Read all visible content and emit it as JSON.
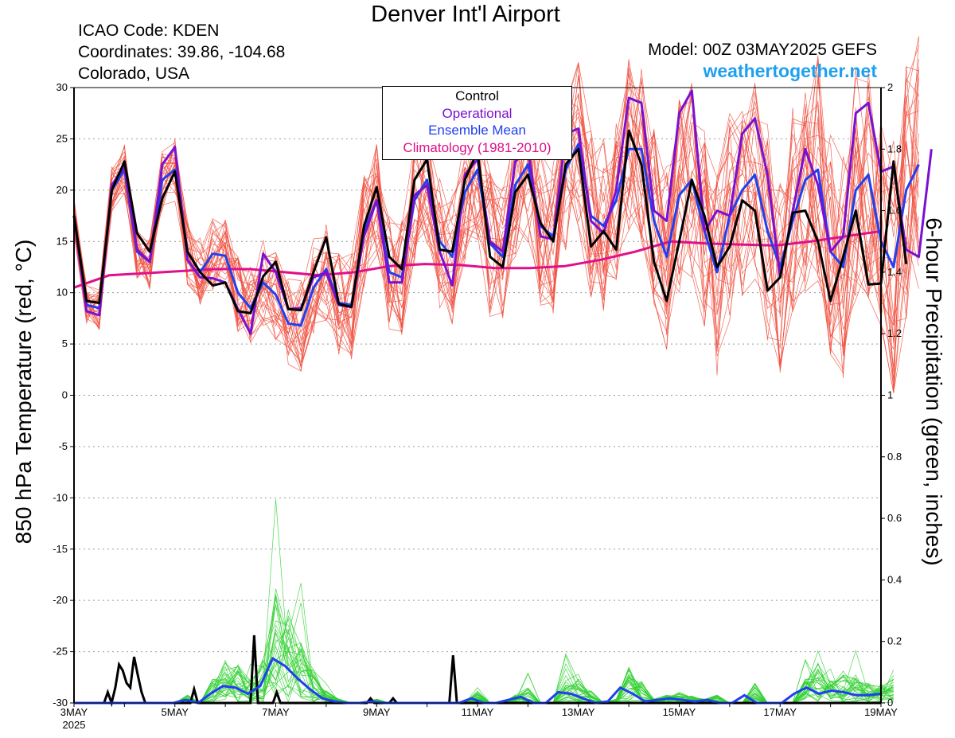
{
  "header": {
    "title": "Denver Int'l Airport",
    "icao": "ICAO Code: KDEN",
    "coordinates": "Coordinates: 39.86, -104.68",
    "location": "Colorado, USA",
    "model": "Model: 00Z 03MAY2025 GEFS",
    "site": "weathertogether.net"
  },
  "colors": {
    "members_temp": "#f05040",
    "members_precip": "#30d030",
    "control": "#000000",
    "operational": "#7a10d0",
    "ensemble_mean": "#2040f0",
    "climatology": "#e0108a",
    "site_link": "#1ea0f0"
  },
  "chart_data": {
    "type": "line",
    "ylabel": "850 hPa Temperature (red, °C)",
    "ylabel_right": "6-hour Precipitation (green, inches)",
    "ylim": [
      -30,
      30
    ],
    "ylim_right": [
      0,
      2
    ],
    "y_ticks": [
      "30",
      "25",
      "20",
      "15",
      "10",
      "5",
      "0",
      "-5",
      "-10",
      "-15",
      "-20",
      "-25",
      "-30"
    ],
    "y_ticks_right": [
      "2",
      "1.8",
      "1.6",
      "1.4",
      "1.2",
      "1",
      "0.8",
      "0.6",
      "0.4",
      "0.2",
      "0"
    ],
    "x_range_days": [
      0,
      16
    ],
    "x_step_hours": 6,
    "x_ticks": [
      {
        "day": 0,
        "label": "3MAY",
        "sub": "2025"
      },
      {
        "day": 2,
        "label": "5MAY"
      },
      {
        "day": 4,
        "label": "7MAY"
      },
      {
        "day": 6,
        "label": "9MAY"
      },
      {
        "day": 8,
        "label": "11MAY"
      },
      {
        "day": 10,
        "label": "13MAY"
      },
      {
        "day": 12,
        "label": "15MAY"
      },
      {
        "day": 14,
        "label": "17MAY"
      },
      {
        "day": 16,
        "label": "19MAY"
      }
    ],
    "legend": [
      "Control",
      "Operational",
      "Ensemble Mean",
      "Climatology (1981-2010)"
    ],
    "legend_position": "top-center",
    "grid": "dotted horizontal",
    "temperature_series": [
      {
        "name": "Control",
        "values": [
          17.5,
          9.2,
          9.0,
          20.0,
          22.8,
          15.8,
          14.0,
          19.2,
          21.8,
          14.0,
          12.0,
          10.7,
          11.0,
          8.2,
          8.0,
          11.6,
          13.0,
          8.4,
          8.3,
          12.0,
          15.4,
          8.9,
          8.6,
          16.5,
          20.3,
          13.5,
          12.3,
          21.0,
          23.0,
          14.2,
          14.0,
          21.0,
          23.8,
          13.5,
          12.5,
          19.8,
          21.5,
          16.8,
          15.0,
          22.5,
          24.0,
          14.5,
          16.0,
          14.2,
          25.8,
          22.5,
          13.0,
          9.2,
          15.0,
          21.0,
          17.5,
          12.5,
          14.5,
          19.0,
          18.0,
          10.2,
          11.5,
          17.8,
          18.0,
          15.0,
          9.2,
          13.5,
          18.0,
          10.8,
          10.9,
          22.8,
          12.8
        ]
      },
      {
        "name": "Operational",
        "values": [
          17.5,
          8.2,
          7.8,
          20.5,
          22.3,
          14.2,
          13.0,
          22.5,
          24.2,
          13.2,
          11.5,
          11.4,
          11.0,
          8.4,
          6.0,
          13.8,
          12.0,
          8.4,
          8.5,
          11.5,
          12.0,
          8.8,
          8.6,
          15.5,
          19.0,
          11.0,
          11.0,
          19.5,
          20.5,
          14.0,
          10.7,
          21.5,
          23.0,
          15.0,
          14.0,
          22.8,
          24.0,
          15.5,
          15.2,
          25.5,
          26.0,
          17.0,
          15.8,
          20.0,
          29.0,
          28.5,
          18.0,
          17.0,
          27.5,
          29.7,
          16.0,
          18.0,
          17.5,
          25.5,
          27.0,
          21.5,
          11.5,
          18.0,
          24.0,
          20.5,
          14.0,
          15.5,
          27.5,
          28.5,
          21.8,
          22.3,
          14.2,
          13.5,
          24.0
        ]
      },
      {
        "name": "Ensemble Mean",
        "values": [
          17.5,
          8.8,
          8.5,
          20.0,
          22.0,
          14.0,
          13.0,
          21.0,
          22.0,
          14.0,
          12.0,
          13.8,
          13.6,
          10.0,
          8.5,
          11.0,
          9.8,
          7.0,
          6.8,
          10.5,
          12.3,
          9.0,
          8.8,
          16.0,
          19.0,
          12.0,
          11.5,
          19.0,
          21.0,
          15.0,
          13.5,
          19.8,
          22.0,
          14.8,
          13.5,
          20.5,
          22.5,
          16.5,
          15.5,
          22.0,
          24.5,
          17.5,
          16.5,
          19.0,
          24.0,
          24.0,
          17.0,
          13.5,
          19.5,
          21.0,
          16.0,
          12.0,
          17.5,
          20.0,
          21.5,
          16.0,
          12.5,
          17.0,
          21.0,
          22.0,
          14.0,
          12.5,
          20.0,
          21.5,
          15.0,
          12.5,
          20.0,
          22.5
        ]
      },
      {
        "name": "Climatology (1981-2010)",
        "values": [
          10.5,
          11.7,
          11.9,
          12.1,
          12.3,
          12.3,
          12.0,
          11.7,
          12.0,
          12.6,
          12.8,
          12.7,
          12.4,
          12.4,
          12.6,
          13.2,
          14.0,
          15.0,
          14.8,
          14.7,
          14.6,
          15.0,
          15.5,
          16.0
        ]
      }
    ],
    "precipitation_series": [
      {
        "name": "Control",
        "values": [
          0,
          0,
          0,
          0,
          0,
          0,
          0,
          0,
          0,
          0.035,
          0,
          0.05,
          0.125,
          0.105,
          0.065,
          0.05,
          0.15,
          0.09,
          0.035,
          0,
          0,
          0,
          0,
          0,
          0,
          0,
          0,
          0,
          0,
          0,
          0,
          0,
          0.045,
          0,
          0,
          0,
          0,
          0,
          0,
          0,
          0,
          0,
          0,
          0,
          0,
          0,
          0,
          0,
          0.22,
          0,
          0,
          0,
          0,
          0,
          0.035,
          0,
          0,
          0,
          0,
          0,
          0,
          0,
          0,
          0,
          0,
          0,
          0,
          0,
          0,
          0,
          0,
          0,
          0,
          0,
          0,
          0,
          0,
          0,
          0,
          0.015,
          0,
          0,
          0,
          0,
          0,
          0.015,
          0,
          0,
          0,
          0,
          0,
          0,
          0,
          0,
          0,
          0,
          0,
          0,
          0,
          0,
          0,
          0.155,
          0,
          0,
          0,
          0,
          0,
          0,
          0,
          0,
          0,
          0,
          0,
          0,
          0,
          0,
          0,
          0,
          0,
          0,
          0,
          0,
          0,
          0,
          0,
          0,
          0,
          0,
          0,
          0,
          0,
          0,
          0,
          0,
          0,
          0,
          0,
          0,
          0,
          0,
          0,
          0,
          0,
          0,
          0,
          0,
          0,
          0,
          0,
          0,
          0,
          0,
          0,
          0,
          0,
          0,
          0,
          0,
          0,
          0,
          0,
          0,
          0,
          0,
          0,
          0,
          0,
          0,
          0,
          0,
          0,
          0,
          0,
          0,
          0,
          0,
          0,
          0,
          0,
          0,
          0,
          0,
          0,
          0,
          0,
          0,
          0,
          0,
          0,
          0,
          0,
          0,
          0,
          0,
          0,
          0,
          0,
          0,
          0,
          0,
          0,
          0,
          0,
          0,
          0,
          0,
          0,
          0,
          0,
          0,
          0,
          0,
          0,
          0,
          0,
          0
        ]
      },
      {
        "name": "Ensemble Mean",
        "values": [
          0,
          0,
          0,
          0,
          0,
          0,
          0,
          0,
          0,
          0.01,
          0,
          0.03,
          0.055,
          0.05,
          0.03,
          0.055,
          0.145,
          0.12,
          0.08,
          0.045,
          0.015,
          0.005,
          0,
          0,
          0.005,
          0,
          0,
          0,
          0,
          0,
          0,
          0,
          0.015,
          0,
          0,
          0.01,
          0.02,
          0,
          0,
          0.035,
          0.03,
          0.015,
          0,
          0.005,
          0.05,
          0.03,
          0.005,
          0.01,
          0.015,
          0.01,
          0.005,
          0.01,
          0,
          0,
          0.025,
          0,
          0,
          0,
          0.03,
          0.05,
          0.03,
          0.04,
          0.035,
          0.025,
          0.025,
          0.03
        ]
      }
    ],
    "member_count": 30
  }
}
